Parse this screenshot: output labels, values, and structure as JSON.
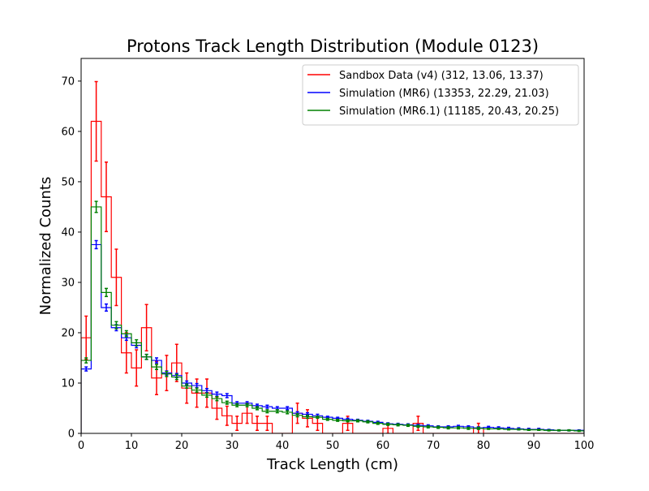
{
  "chart_data": {
    "type": "histogram",
    "title": "Protons Track Length Distribution (Module 0123)",
    "xlabel": "Track Length (cm)",
    "ylabel": "Normalized Counts",
    "xlim": [
      0,
      100
    ],
    "ylim": [
      0,
      74.5
    ],
    "xticks": [
      0,
      10,
      20,
      30,
      40,
      50,
      60,
      70,
      80,
      90,
      100
    ],
    "yticks": [
      0,
      10,
      20,
      30,
      40,
      50,
      60,
      70
    ],
    "grid": false,
    "legend_position": "top-right",
    "bin_width": 2,
    "bin_edges_start": 0,
    "series": [
      {
        "name": "Sandbox Data (v4) (312, 13.06, 13.37)",
        "color": "#ff0000",
        "values": [
          19,
          62,
          47,
          31,
          16,
          13,
          21,
          11,
          12,
          14,
          9,
          8,
          8,
          5,
          3.5,
          2,
          4,
          2,
          2,
          0,
          0,
          4,
          3,
          2,
          0,
          0,
          2,
          0,
          0,
          0,
          1,
          0,
          0,
          2,
          0,
          0,
          0,
          0,
          0,
          1,
          0,
          0,
          0,
          0,
          0,
          0,
          0,
          0,
          0,
          0
        ],
        "errors": [
          4.3,
          7.9,
          6.9,
          5.6,
          4.0,
          3.6,
          4.6,
          3.3,
          3.5,
          3.7,
          3.0,
          2.8,
          2.8,
          2.2,
          1.9,
          1.4,
          2.0,
          1.4,
          1.4,
          0,
          0,
          2.0,
          1.7,
          1.4,
          0,
          0,
          1.4,
          0,
          0,
          0,
          1.0,
          0,
          0,
          1.4,
          0,
          0,
          0,
          0,
          0,
          1.0,
          0,
          0,
          0,
          0,
          0,
          0,
          0,
          0,
          0,
          0
        ]
      },
      {
        "name": "Simulation (MR6) (13353, 22.29, 21.03)",
        "color": "#0000ff",
        "values": [
          12.8,
          37.5,
          25,
          21,
          19,
          17.5,
          15.2,
          14.5,
          12,
          11.5,
          10,
          9.5,
          8.5,
          7.8,
          7.5,
          6,
          6,
          5.5,
          5.3,
          5,
          5,
          4,
          3.8,
          3.5,
          3.2,
          3,
          2.8,
          2.6,
          2.4,
          2.2,
          1.9,
          1.8,
          1.7,
          1.6,
          1.5,
          1.3,
          1.3,
          1.4,
          1.3,
          1.1,
          1.2,
          1.1,
          1.0,
          0.9,
          0.8,
          0.8,
          0.7,
          0.6,
          0.6,
          0.6
        ],
        "errors": [
          0.4,
          0.8,
          0.7,
          0.6,
          0.5,
          0.5,
          0.5,
          0.5,
          0.4,
          0.4,
          0.4,
          0.4,
          0.4,
          0.4,
          0.4,
          0.3,
          0.3,
          0.3,
          0.3,
          0.3,
          0.3,
          0.3,
          0.3,
          0.3,
          0.2,
          0.2,
          0.2,
          0.2,
          0.2,
          0.2,
          0.2,
          0.2,
          0.2,
          0.2,
          0.2,
          0.2,
          0.2,
          0.2,
          0.2,
          0.2,
          0.2,
          0.2,
          0.2,
          0.2,
          0.2,
          0.2,
          0.1,
          0.1,
          0.1,
          0.1
        ]
      },
      {
        "name": "Simulation (MR6.1) (11185, 20.43, 20.25)",
        "color": "#008000",
        "values": [
          14.5,
          45,
          28,
          21.5,
          19.8,
          18,
          15.2,
          13.2,
          11.8,
          11.2,
          9.4,
          8.6,
          7.6,
          6.9,
          6.1,
          5.6,
          5.6,
          5,
          4.4,
          4.4,
          4.2,
          3.6,
          3.3,
          3.2,
          2.8,
          2.6,
          2.5,
          2.5,
          2.3,
          2.0,
          1.8,
          1.7,
          1.6,
          1.4,
          1.3,
          1.2,
          1.1,
          1.1,
          1.0,
          1.0,
          0.9,
          0.9,
          0.8,
          0.8,
          0.7,
          0.7,
          0.6,
          0.6,
          0.6,
          0.5
        ],
        "errors": [
          0.5,
          1.1,
          0.8,
          0.7,
          0.6,
          0.6,
          0.5,
          0.5,
          0.5,
          0.5,
          0.4,
          0.4,
          0.4,
          0.4,
          0.3,
          0.3,
          0.3,
          0.3,
          0.3,
          0.3,
          0.3,
          0.3,
          0.3,
          0.2,
          0.2,
          0.2,
          0.2,
          0.2,
          0.2,
          0.2,
          0.2,
          0.2,
          0.2,
          0.2,
          0.2,
          0.2,
          0.2,
          0.2,
          0.2,
          0.2,
          0.1,
          0.1,
          0.1,
          0.1,
          0.1,
          0.1,
          0.1,
          0.1,
          0.1,
          0.1
        ]
      }
    ]
  }
}
